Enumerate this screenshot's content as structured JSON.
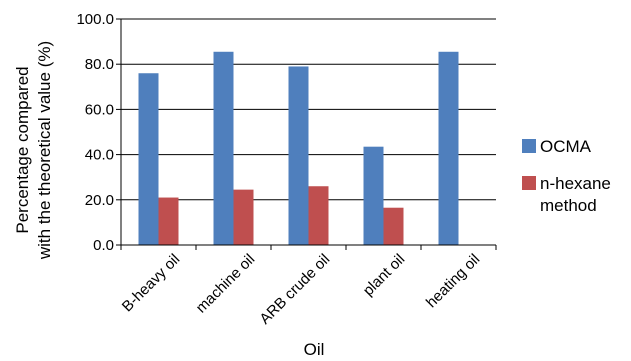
{
  "chart_data": {
    "type": "bar",
    "categories": [
      "B-heavy oil",
      "machine oil",
      "ARB crude oil",
      "plant oil",
      "heating oil"
    ],
    "series": [
      {
        "name": "OCMA",
        "values": [
          76.0,
          85.5,
          79.0,
          43.5,
          85.5
        ],
        "color": "#4f7fbd"
      },
      {
        "name": "n-hexane method",
        "legend_lines": [
          "n-hexane",
          "method"
        ],
        "values": [
          21.0,
          24.5,
          26.0,
          16.5,
          null
        ],
        "color": "#bf4f4f"
      }
    ],
    "xlabel": "Oil",
    "ylabel_lines": [
      "Percentage compared",
      "with the theoretical value (%)"
    ],
    "ylim": [
      0,
      100
    ],
    "yticks": [
      "0.0",
      "20.0",
      "40.0",
      "60.0",
      "80.0",
      "100.0"
    ],
    "grid": true,
    "legend_position": "right"
  }
}
